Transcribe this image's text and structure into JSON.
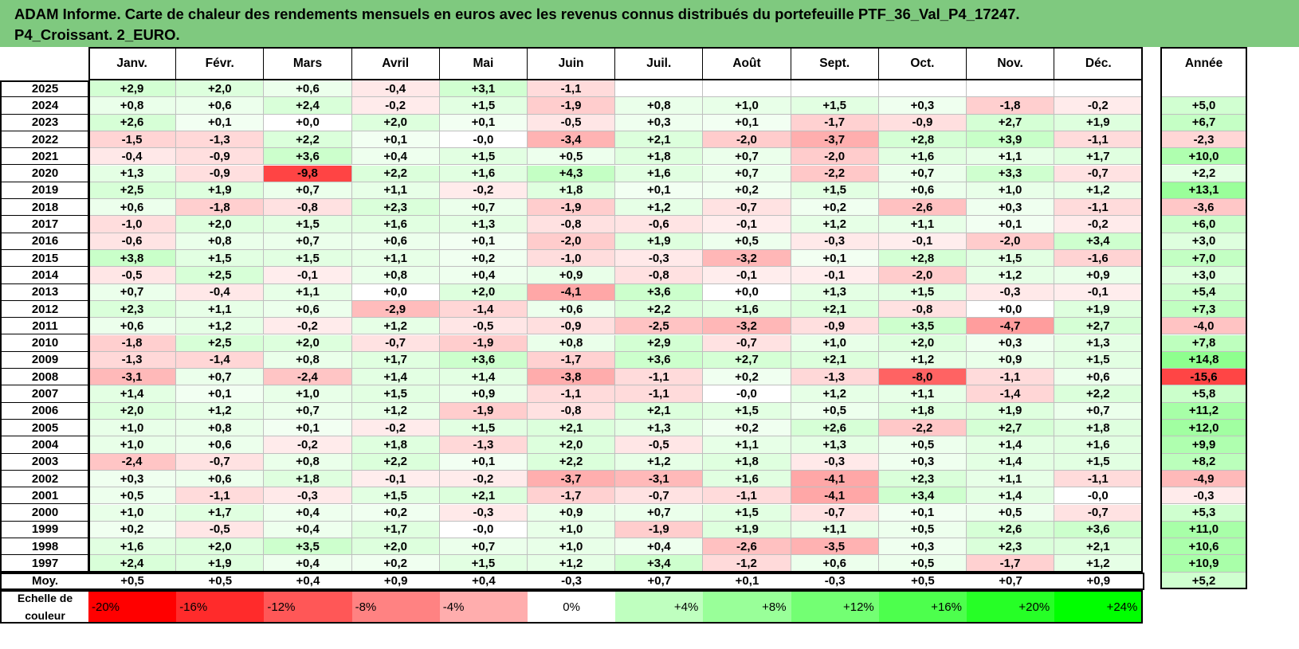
{
  "title_line1": "ADAM Informe. Carte de chaleur des rendements mensuels en euros avec les revenus connus distribués du portefeuille PTF_36_Val_P4_17247.",
  "title_line2": "P4_Croissant. 2_EURO.",
  "chart_data": {
    "type": "heatmap",
    "title": "ADAM Informe. Carte de chaleur des rendements mensuels en euros avec les revenus connus distribués du portefeuille PTF_36_Val_P4_17247. P4_Croissant. 2_EURO.",
    "columns": [
      "Janv.",
      "Févr.",
      "Mars",
      "Avril",
      "Mai",
      "Juin",
      "Juil.",
      "Août",
      "Sept.",
      "Oct.",
      "Nov.",
      "Déc."
    ],
    "year_column": "Année",
    "rows": [
      {
        "year": "2025",
        "values": [
          "+2,9",
          "+2,0",
          "+0,6",
          "-0,4",
          "+3,1",
          "-1,1",
          "",
          "",
          "",
          "",
          "",
          ""
        ],
        "annual": ""
      },
      {
        "year": "2024",
        "values": [
          "+0,8",
          "+0,6",
          "+2,4",
          "-0,2",
          "+1,5",
          "-1,9",
          "+0,8",
          "+1,0",
          "+1,5",
          "+0,3",
          "-1,8",
          "-0,2"
        ],
        "annual": "+5,0"
      },
      {
        "year": "2023",
        "values": [
          "+2,6",
          "+0,1",
          "+0,0",
          "+2,0",
          "+0,1",
          "-0,5",
          "+0,3",
          "+0,1",
          "-1,7",
          "-0,9",
          "+2,7",
          "+1,9"
        ],
        "annual": "+6,7"
      },
      {
        "year": "2022",
        "values": [
          "-1,5",
          "-1,3",
          "+2,2",
          "+0,1",
          "-0,0",
          "-3,4",
          "+2,1",
          "-2,0",
          "-3,7",
          "+2,8",
          "+3,9",
          "-1,1"
        ],
        "annual": "-2,3"
      },
      {
        "year": "2021",
        "values": [
          "-0,4",
          "-0,9",
          "+3,6",
          "+0,4",
          "+1,5",
          "+0,5",
          "+1,8",
          "+0,7",
          "-2,0",
          "+1,6",
          "+1,1",
          "+1,7"
        ],
        "annual": "+10,0"
      },
      {
        "year": "2020",
        "values": [
          "+1,3",
          "-0,9",
          "-9,8",
          "+2,2",
          "+1,6",
          "+4,3",
          "+1,6",
          "+0,7",
          "-2,2",
          "+0,7",
          "+3,3",
          "-0,7"
        ],
        "annual": "+2,2"
      },
      {
        "year": "2019",
        "values": [
          "+2,5",
          "+1,9",
          "+0,7",
          "+1,1",
          "-0,2",
          "+1,8",
          "+0,1",
          "+0,2",
          "+1,5",
          "+0,6",
          "+1,0",
          "+1,2"
        ],
        "annual": "+13,1"
      },
      {
        "year": "2018",
        "values": [
          "+0,6",
          "-1,8",
          "-0,8",
          "+2,3",
          "+0,7",
          "-1,9",
          "+1,2",
          "-0,7",
          "+0,2",
          "-2,6",
          "+0,3",
          "-1,1"
        ],
        "annual": "-3,6"
      },
      {
        "year": "2017",
        "values": [
          "-1,0",
          "+2,0",
          "+1,5",
          "+1,6",
          "+1,3",
          "-0,8",
          "-0,6",
          "-0,1",
          "+1,2",
          "+1,1",
          "+0,1",
          "-0,2"
        ],
        "annual": "+6,0"
      },
      {
        "year": "2016",
        "values": [
          "-0,6",
          "+0,8",
          "+0,7",
          "+0,6",
          "+0,1",
          "-2,0",
          "+1,9",
          "+0,5",
          "-0,3",
          "-0,1",
          "-2,0",
          "+3,4"
        ],
        "annual": "+3,0"
      },
      {
        "year": "2015",
        "values": [
          "+3,8",
          "+1,5",
          "+1,5",
          "+1,1",
          "+0,2",
          "-1,0",
          "-0,3",
          "-3,2",
          "+0,1",
          "+2,8",
          "+1,5",
          "-1,6"
        ],
        "annual": "+7,0"
      },
      {
        "year": "2014",
        "values": [
          "-0,5",
          "+2,5",
          "-0,1",
          "+0,8",
          "+0,4",
          "+0,9",
          "-0,8",
          "-0,1",
          "-0,1",
          "-2,0",
          "+1,2",
          "+0,9"
        ],
        "annual": "+3,0"
      },
      {
        "year": "2013",
        "values": [
          "+0,7",
          "-0,4",
          "+1,1",
          "+0,0",
          "+2,0",
          "-4,1",
          "+3,6",
          "+0,0",
          "+1,3",
          "+1,5",
          "-0,3",
          "-0,1"
        ],
        "annual": "+5,4"
      },
      {
        "year": "2012",
        "values": [
          "+2,3",
          "+1,1",
          "+0,6",
          "-2,9",
          "-1,4",
          "+0,6",
          "+2,2",
          "+1,6",
          "+2,1",
          "-0,8",
          "+0,0",
          "+1,9"
        ],
        "annual": "+7,3"
      },
      {
        "year": "2011",
        "values": [
          "+0,6",
          "+1,2",
          "-0,2",
          "+1,2",
          "-0,5",
          "-0,9",
          "-2,5",
          "-3,2",
          "-0,9",
          "+3,5",
          "-4,7",
          "+2,7"
        ],
        "annual": "-4,0"
      },
      {
        "year": "2010",
        "values": [
          "-1,8",
          "+2,5",
          "+2,0",
          "-0,7",
          "-1,9",
          "+0,8",
          "+2,9",
          "-0,7",
          "+1,0",
          "+2,0",
          "+0,3",
          "+1,3"
        ],
        "annual": "+7,8"
      },
      {
        "year": "2009",
        "values": [
          "-1,3",
          "-1,4",
          "+0,8",
          "+1,7",
          "+3,6",
          "-1,7",
          "+3,6",
          "+2,7",
          "+2,1",
          "+1,2",
          "+0,9",
          "+1,5"
        ],
        "annual": "+14,8"
      },
      {
        "year": "2008",
        "values": [
          "-3,1",
          "+0,7",
          "-2,4",
          "+1,4",
          "+1,4",
          "-3,8",
          "-1,1",
          "+0,2",
          "-1,3",
          "-8,0",
          "-1,1",
          "+0,6"
        ],
        "annual": "-15,6"
      },
      {
        "year": "2007",
        "values": [
          "+1,4",
          "+0,1",
          "+1,0",
          "+1,5",
          "+0,9",
          "-1,1",
          "-1,1",
          "-0,0",
          "+1,2",
          "+1,1",
          "-1,4",
          "+2,2"
        ],
        "annual": "+5,8"
      },
      {
        "year": "2006",
        "values": [
          "+2,0",
          "+1,2",
          "+0,7",
          "+1,2",
          "-1,9",
          "-0,8",
          "+2,1",
          "+1,5",
          "+0,5",
          "+1,8",
          "+1,9",
          "+0,7"
        ],
        "annual": "+11,2"
      },
      {
        "year": "2005",
        "values": [
          "+1,0",
          "+0,8",
          "+0,1",
          "-0,2",
          "+1,5",
          "+2,1",
          "+1,3",
          "+0,2",
          "+2,6",
          "-2,2",
          "+2,7",
          "+1,8"
        ],
        "annual": "+12,0"
      },
      {
        "year": "2004",
        "values": [
          "+1,0",
          "+0,6",
          "-0,2",
          "+1,8",
          "-1,3",
          "+2,0",
          "-0,5",
          "+1,1",
          "+1,3",
          "+0,5",
          "+1,4",
          "+1,6"
        ],
        "annual": "+9,9"
      },
      {
        "year": "2003",
        "values": [
          "-2,4",
          "-0,7",
          "+0,8",
          "+2,2",
          "+0,1",
          "+2,2",
          "+1,2",
          "+1,8",
          "-0,3",
          "+0,3",
          "+1,4",
          "+1,5"
        ],
        "annual": "+8,2"
      },
      {
        "year": "2002",
        "values": [
          "+0,3",
          "+0,6",
          "+1,8",
          "-0,1",
          "-0,2",
          "-3,7",
          "-3,1",
          "+1,6",
          "-4,1",
          "+2,3",
          "+1,1",
          "-1,1"
        ],
        "annual": "-4,9"
      },
      {
        "year": "2001",
        "values": [
          "+0,5",
          "-1,1",
          "-0,3",
          "+1,5",
          "+2,1",
          "-1,7",
          "-0,7",
          "-1,1",
          "-4,1",
          "+3,4",
          "+1,4",
          "-0,0"
        ],
        "annual": "-0,3"
      },
      {
        "year": "2000",
        "values": [
          "+1,0",
          "+1,7",
          "+0,4",
          "+0,2",
          "-0,3",
          "+0,9",
          "+0,7",
          "+1,5",
          "-0,7",
          "+0,1",
          "+0,5",
          "-0,7"
        ],
        "annual": "+5,3"
      },
      {
        "year": "1999",
        "values": [
          "+0,2",
          "-0,5",
          "+0,4",
          "+1,7",
          "-0,0",
          "+1,0",
          "-1,9",
          "+1,9",
          "+1,1",
          "+0,5",
          "+2,6",
          "+3,6"
        ],
        "annual": "+11,0"
      },
      {
        "year": "1998",
        "values": [
          "+1,6",
          "+2,0",
          "+3,5",
          "+2,0",
          "+0,7",
          "+1,0",
          "+0,4",
          "-2,6",
          "-3,5",
          "+0,3",
          "+2,3",
          "+2,1"
        ],
        "annual": "+10,6"
      },
      {
        "year": "1997",
        "values": [
          "+2,4",
          "+1,9",
          "+0,4",
          "+0,2",
          "+1,5",
          "+1,2",
          "+3,4",
          "-1,2",
          "+0,6",
          "+0,5",
          "-1,7",
          "+1,2"
        ],
        "annual": "+10,9"
      }
    ],
    "average": {
      "label": "Moy.",
      "values": [
        "+0,5",
        "+0,5",
        "+0,4",
        "+0,9",
        "+0,4",
        "-0,3",
        "+0,7",
        "+0,1",
        "-0,3",
        "+0,5",
        "+0,7",
        "+0,9"
      ],
      "annual": "+5,2"
    },
    "color_scale": {
      "label": "Echelle de couleur",
      "stops": [
        "-20%",
        "-16%",
        "-12%",
        "-8%",
        "-4%",
        "0%",
        "+4%",
        "+8%",
        "+12%",
        "+16%",
        "+20%",
        "+24%"
      ],
      "stop_values": [
        -20,
        -16,
        -12,
        -8,
        -4,
        0,
        4,
        8,
        12,
        16,
        20,
        24
      ],
      "negative_color": "#ff0000",
      "positive_color": "#00ff00",
      "neutral_color": "#ffffff"
    }
  }
}
